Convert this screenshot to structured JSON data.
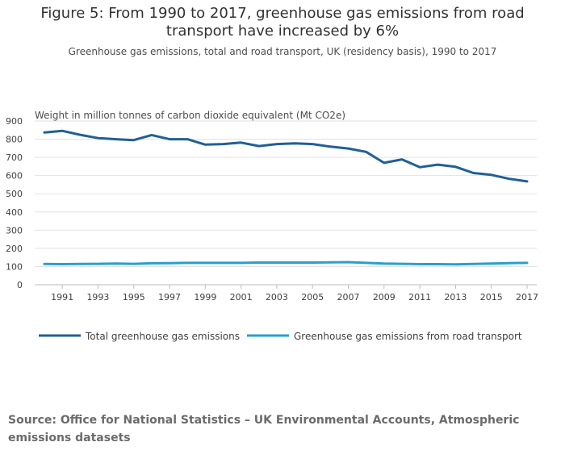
{
  "header": {
    "title": "Figure 5: From 1990 to 2017, greenhouse gas emissions from road transport have increased by 6%",
    "subtitle": "Greenhouse gas emissions, total and road transport, UK (residency basis), 1990 to 2017"
  },
  "footer": {
    "source": "Source: Office for National Statistics – UK Environmental Accounts, Atmospheric emissions datasets"
  },
  "chart_data": {
    "type": "line",
    "ylabel": "Weight in million tonnes of carbon dioxide equivalent (Mt CO2e)",
    "xlabel": "",
    "ylim": [
      0,
      900
    ],
    "yticks": [
      0,
      100,
      200,
      300,
      400,
      500,
      600,
      700,
      800,
      900
    ],
    "xlim": [
      1990,
      2017
    ],
    "xticks": [
      1991,
      1993,
      1995,
      1997,
      1999,
      2001,
      2003,
      2005,
      2007,
      2009,
      2011,
      2013,
      2015,
      2017
    ],
    "grid": true,
    "legend_position": "bottom",
    "x": [
      1990,
      1991,
      1992,
      1993,
      1994,
      1995,
      1996,
      1997,
      1998,
      1999,
      2000,
      2001,
      2002,
      2003,
      2004,
      2005,
      2006,
      2007,
      2008,
      2009,
      2010,
      2011,
      2012,
      2013,
      2014,
      2015,
      2016,
      2017
    ],
    "series": [
      {
        "name": "Total greenhouse gas emissions",
        "color": "#206095",
        "values": [
          837,
          846,
          824,
          806,
          800,
          795,
          823,
          800,
          800,
          770,
          773,
          781,
          762,
          773,
          777,
          773,
          759,
          749,
          730,
          670,
          689,
          646,
          660,
          648,
          614,
          604,
          582,
          568
        ]
      },
      {
        "name": "Greenhouse gas emissions from road transport",
        "color": "#27a0cc",
        "values": [
          114,
          113,
          114,
          115,
          116,
          115,
          118,
          119,
          120,
          120,
          120,
          120,
          122,
          122,
          122,
          122,
          123,
          124,
          120,
          116,
          115,
          113,
          113,
          112,
          114,
          116,
          119,
          120
        ]
      }
    ]
  }
}
